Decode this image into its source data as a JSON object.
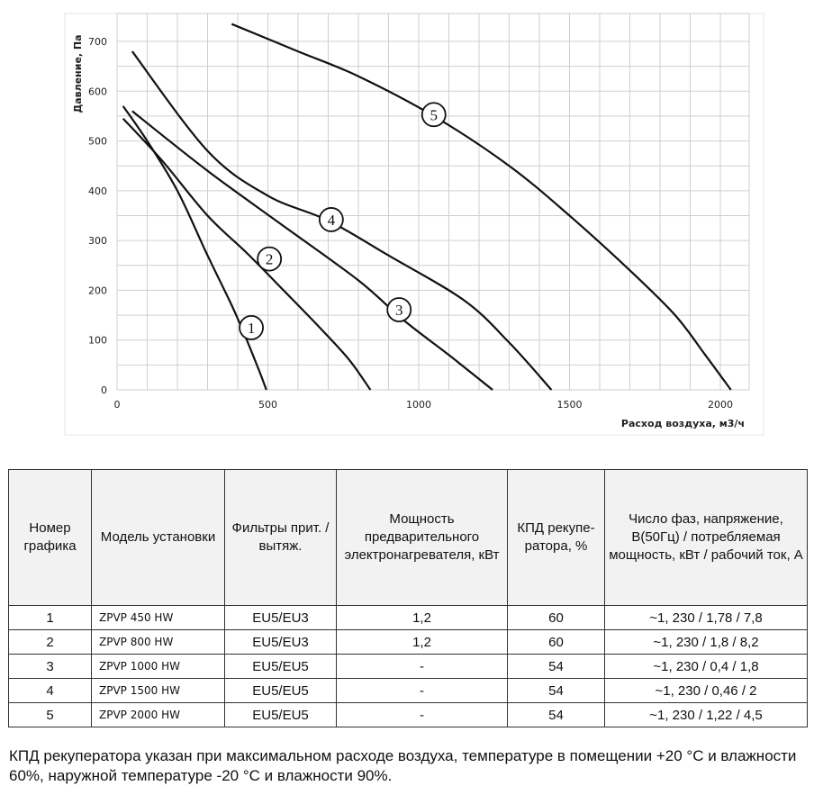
{
  "chart_data": {
    "type": "line",
    "xlabel": "Расход воздуха, м3/ч",
    "ylabel": "Давление, Па",
    "xlim": [
      0,
      2100
    ],
    "ylim": [
      0,
      730
    ],
    "xticks": [
      0,
      500,
      1000,
      1500,
      2000
    ],
    "yticks": [
      0,
      100,
      200,
      300,
      400,
      500,
      600,
      700
    ],
    "grid": true,
    "series": [
      {
        "name": "1",
        "points": [
          [
            20,
            570
          ],
          [
            100,
            500
          ],
          [
            200,
            400
          ],
          [
            300,
            270
          ],
          [
            380,
            170
          ],
          [
            430,
            100
          ],
          [
            470,
            40
          ],
          [
            495,
            0
          ]
        ],
        "label_at": [
          445,
          125
        ]
      },
      {
        "name": "2",
        "points": [
          [
            20,
            545
          ],
          [
            150,
            460
          ],
          [
            300,
            350
          ],
          [
            430,
            275
          ],
          [
            560,
            195
          ],
          [
            680,
            120
          ],
          [
            770,
            60
          ],
          [
            840,
            0
          ]
        ],
        "label_at": [
          505,
          263
        ]
      },
      {
        "name": "3",
        "points": [
          [
            50,
            560
          ],
          [
            300,
            440
          ],
          [
            550,
            330
          ],
          [
            800,
            220
          ],
          [
            950,
            140
          ],
          [
            1100,
            70
          ],
          [
            1245,
            0
          ]
        ],
        "label_at": [
          935,
          161
        ]
      },
      {
        "name": "4",
        "points": [
          [
            50,
            680
          ],
          [
            300,
            480
          ],
          [
            500,
            390
          ],
          [
            700,
            340
          ],
          [
            900,
            270
          ],
          [
            1150,
            180
          ],
          [
            1300,
            95
          ],
          [
            1440,
            0
          ]
        ],
        "label_at": [
          710,
          342
        ]
      },
      {
        "name": "5",
        "points": [
          [
            380,
            735
          ],
          [
            600,
            680
          ],
          [
            800,
            630
          ],
          [
            1050,
            550
          ],
          [
            1300,
            450
          ],
          [
            1500,
            350
          ],
          [
            1700,
            240
          ],
          [
            1850,
            150
          ],
          [
            1950,
            70
          ],
          [
            2035,
            0
          ]
        ],
        "label_at": [
          1050,
          553
        ]
      }
    ]
  },
  "table": {
    "headers": [
      "Номер графика",
      "Модель установки",
      "Фильтры прит. / вытяж.",
      "Мощность предварительного электронагревателя, кВт",
      "КПД рекупе- ратора, %",
      "Число фаз, напряжение, В(50Гц) / потребляемая мощность, кВт / рабочий ток, А"
    ],
    "rows": [
      [
        "1",
        "ZPVP 450 HW",
        "EU5/EU3",
        "1,2",
        "60",
        "~1, 230 / 1,78 / 7,8"
      ],
      [
        "2",
        "ZPVP 800 HW",
        "EU5/EU3",
        "1,2",
        "60",
        "~1, 230 / 1,8 / 8,2"
      ],
      [
        "3",
        "ZPVP 1000 HW",
        "EU5/EU5",
        "-",
        "54",
        "~1, 230 / 0,4 / 1,8"
      ],
      [
        "4",
        "ZPVP 1500 HW",
        "EU5/EU5",
        "-",
        "54",
        "~1, 230 / 0,46 / 2"
      ],
      [
        "5",
        "ZPVP 2000 HW",
        "EU5/EU5",
        "-",
        "54",
        "~1, 230 / 1,22 / 4,5"
      ]
    ]
  },
  "footnote": "КПД рекуператора указан при максимальном расходе воздуха, температуре в помещении +20 °C и влажности 60%, наружной температуре -20 °C и влажности 90%."
}
